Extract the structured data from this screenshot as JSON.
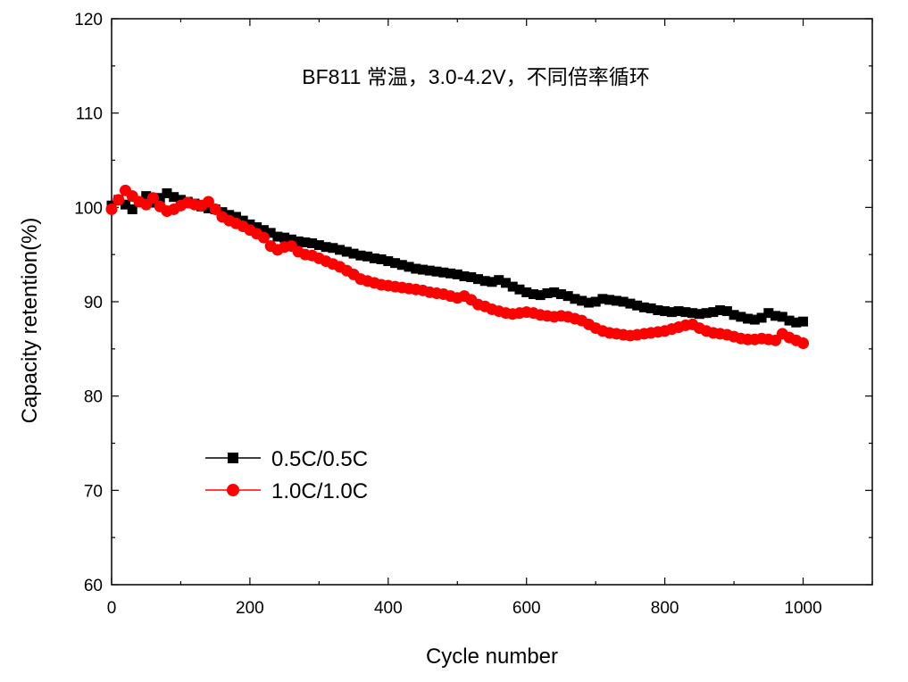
{
  "chart_data": {
    "type": "scatter",
    "title": "BF811 常温，3.0-4.2V，不同倍率循环",
    "xlabel": "Cycle number",
    "ylabel": "Capacity retention(%)",
    "xlim": [
      0,
      1100
    ],
    "ylim": [
      60,
      120
    ],
    "xticks": [
      "0",
      "200",
      "400",
      "600",
      "800",
      "1000"
    ],
    "xtick_values": [
      0,
      200,
      400,
      600,
      800,
      1000
    ],
    "yticks": [
      "60",
      "70",
      "80",
      "90",
      "100",
      "110",
      "120"
    ],
    "ytick_values": [
      60,
      70,
      80,
      90,
      100,
      110,
      120
    ],
    "grid": false,
    "legend_position": "bottom-left",
    "series": [
      {
        "name": "0.5C/0.5C",
        "color": "#000000",
        "marker": "square",
        "x": [
          0,
          10,
          20,
          30,
          40,
          50,
          60,
          70,
          80,
          90,
          100,
          110,
          120,
          130,
          140,
          150,
          160,
          170,
          180,
          190,
          200,
          210,
          220,
          230,
          240,
          250,
          260,
          270,
          280,
          290,
          300,
          310,
          320,
          330,
          340,
          350,
          360,
          370,
          380,
          390,
          400,
          410,
          420,
          430,
          440,
          450,
          460,
          470,
          480,
          490,
          500,
          510,
          520,
          530,
          540,
          550,
          560,
          570,
          580,
          590,
          600,
          610,
          620,
          630,
          640,
          650,
          660,
          670,
          680,
          690,
          700,
          710,
          720,
          730,
          740,
          750,
          760,
          770,
          780,
          790,
          800,
          810,
          820,
          830,
          840,
          850,
          860,
          870,
          880,
          890,
          900,
          910,
          920,
          930,
          940,
          950,
          960,
          970,
          980,
          990,
          1000
        ],
        "values": [
          100.2,
          100.8,
          100.3,
          99.8,
          100.6,
          101.2,
          100.5,
          101.0,
          101.5,
          101.1,
          100.8,
          100.6,
          100.4,
          100.1,
          99.9,
          99.8,
          99.5,
          99.2,
          99.0,
          98.6,
          98.2,
          97.9,
          97.6,
          97.3,
          96.9,
          96.8,
          96.6,
          96.4,
          96.3,
          96.2,
          96.0,
          95.8,
          95.7,
          95.5,
          95.3,
          95.1,
          94.9,
          94.8,
          94.6,
          94.5,
          94.3,
          94.1,
          93.9,
          93.7,
          93.5,
          93.4,
          93.3,
          93.2,
          93.1,
          93.0,
          92.9,
          92.7,
          92.6,
          92.4,
          92.2,
          92.1,
          92.3,
          92.0,
          91.6,
          91.3,
          91.0,
          90.8,
          90.7,
          90.9,
          91.0,
          90.8,
          90.6,
          90.3,
          90.1,
          89.9,
          90.0,
          90.3,
          90.2,
          90.1,
          90.0,
          89.8,
          89.6,
          89.4,
          89.3,
          89.1,
          89.0,
          88.9,
          89.0,
          88.9,
          88.8,
          88.7,
          88.8,
          88.9,
          89.1,
          89.0,
          88.6,
          88.4,
          88.2,
          88.1,
          88.3,
          88.8,
          88.5,
          88.4,
          88.0,
          87.8,
          87.9
        ]
      },
      {
        "name": "1.0C/1.0C",
        "color": "#ff0000",
        "marker": "circle",
        "x": [
          0,
          10,
          20,
          30,
          40,
          50,
          60,
          70,
          80,
          90,
          100,
          110,
          120,
          130,
          140,
          150,
          160,
          170,
          180,
          190,
          200,
          210,
          220,
          230,
          240,
          250,
          260,
          270,
          280,
          290,
          300,
          310,
          320,
          330,
          340,
          350,
          360,
          370,
          380,
          390,
          400,
          410,
          420,
          430,
          440,
          450,
          460,
          470,
          480,
          490,
          500,
          510,
          520,
          530,
          540,
          550,
          560,
          570,
          580,
          590,
          600,
          610,
          620,
          630,
          640,
          650,
          660,
          670,
          680,
          690,
          700,
          710,
          720,
          730,
          740,
          750,
          760,
          770,
          780,
          790,
          800,
          810,
          820,
          830,
          840,
          850,
          860,
          870,
          880,
          890,
          900,
          910,
          920,
          930,
          940,
          950,
          960,
          970,
          980,
          990,
          1000
        ],
        "values": [
          99.8,
          100.8,
          101.8,
          101.2,
          100.6,
          100.3,
          101.0,
          100.1,
          99.6,
          99.8,
          100.2,
          100.5,
          100.3,
          100.2,
          100.6,
          99.8,
          99.0,
          98.6,
          98.3,
          98.0,
          97.6,
          97.2,
          96.8,
          95.9,
          95.5,
          95.8,
          95.9,
          95.3,
          95.0,
          94.9,
          94.6,
          94.3,
          94.0,
          93.7,
          93.3,
          92.9,
          92.4,
          92.2,
          92.0,
          91.8,
          91.7,
          91.6,
          91.5,
          91.4,
          91.3,
          91.2,
          91.0,
          90.9,
          90.8,
          90.6,
          90.4,
          90.6,
          90.2,
          89.7,
          89.5,
          89.2,
          89.0,
          88.8,
          88.7,
          88.8,
          88.9,
          88.8,
          88.6,
          88.5,
          88.4,
          88.5,
          88.4,
          88.2,
          88.0,
          87.6,
          87.2,
          86.9,
          86.7,
          86.6,
          86.5,
          86.4,
          86.5,
          86.6,
          86.7,
          86.8,
          86.9,
          87.1,
          87.3,
          87.5,
          87.6,
          87.2,
          86.9,
          86.7,
          86.6,
          86.5,
          86.3,
          86.1,
          86.0,
          86.0,
          86.1,
          86.0,
          85.9,
          86.6,
          86.2,
          85.9,
          85.6
        ]
      }
    ]
  }
}
